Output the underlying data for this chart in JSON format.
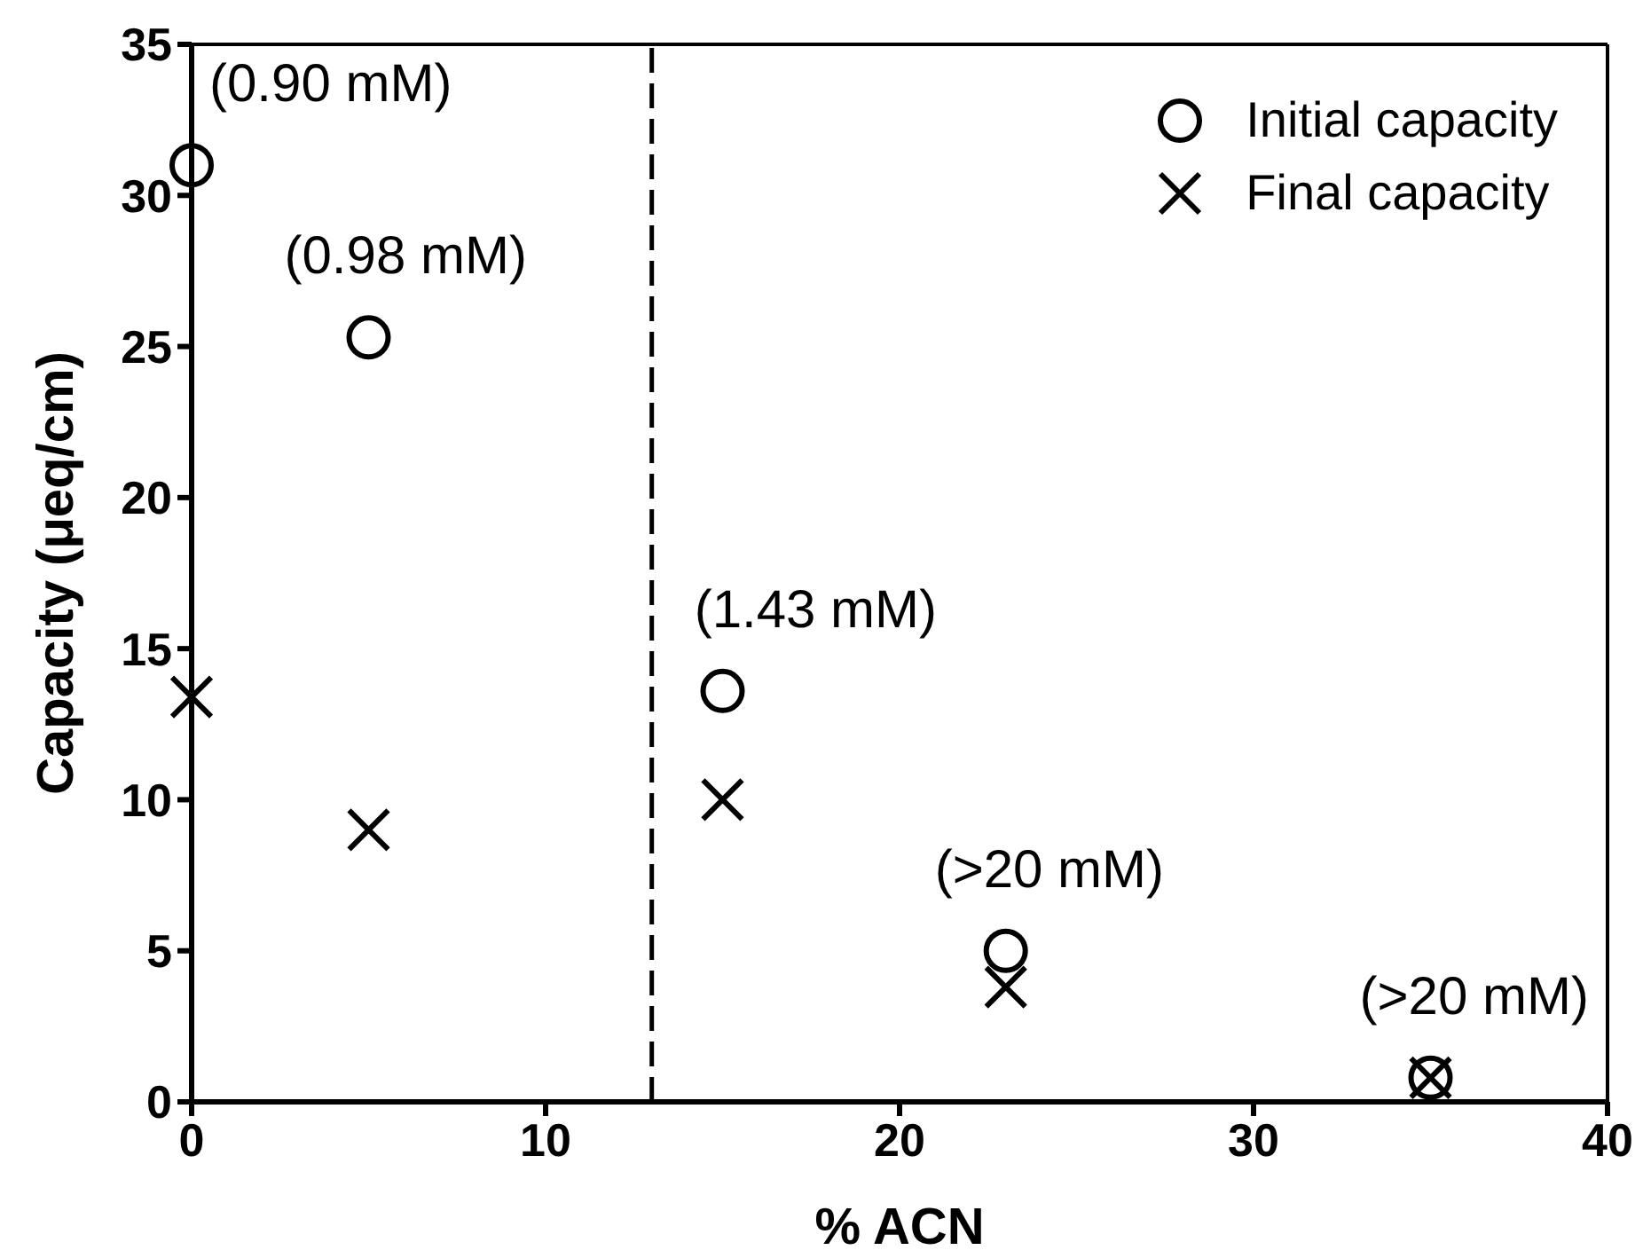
{
  "chart_data": {
    "type": "scatter",
    "xlabel": "% ACN",
    "ylabel": "Capacity (μeq/cm)",
    "x": [
      0,
      5,
      15,
      23,
      35
    ],
    "series": [
      {
        "name": "Initial capacity",
        "color": "#000000",
        "marker": "circle",
        "values": [
          31.0,
          25.3,
          13.6,
          5.0,
          0.8
        ]
      },
      {
        "name": "Final capacity",
        "color": "#000000",
        "marker": "cross",
        "values": [
          13.4,
          9.0,
          10.0,
          3.8,
          0.8
        ]
      }
    ],
    "xlim": [
      0,
      40
    ],
    "xticks": [
      0,
      10,
      20,
      30,
      40
    ],
    "ylim": [
      0,
      35
    ],
    "yticks": [
      0,
      5,
      10,
      15,
      20,
      25,
      30,
      35
    ],
    "legend": "top right",
    "ref_lines": [
      {
        "axis": "x",
        "value": 13,
        "color": "#000000",
        "line_style": "dashed"
      }
    ],
    "annotations": [
      {
        "text": "(0.90 mM)",
        "x": 0,
        "y": 31.0
      },
      {
        "text": "(0.98 mM)",
        "x": 5,
        "y": 25.3
      },
      {
        "text": "(1.43 mM)",
        "x": 15,
        "y": 13.6
      },
      {
        "text": "(>20 mM)",
        "x": 23,
        "y": 5.0
      },
      {
        "text": "(>20 mM)",
        "x": 35,
        "y": 0.8
      }
    ]
  }
}
